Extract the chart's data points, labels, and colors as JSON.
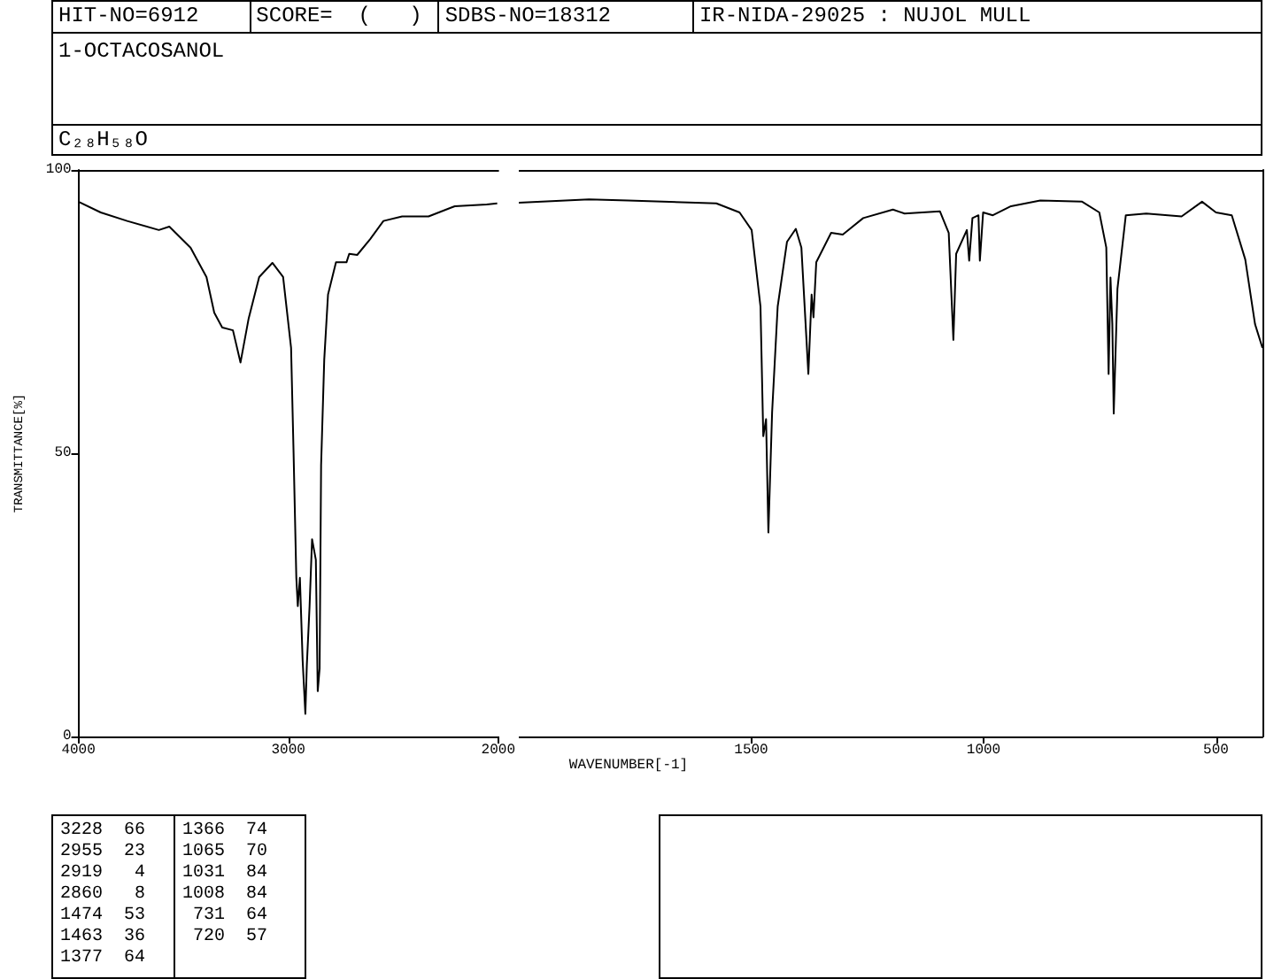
{
  "chart_data": [
    {
      "type": "line",
      "title": "1-OCTACOSANOL",
      "subtitle": "C₂₈H₅₈O",
      "xlabel": "WAVENUMBER[-1]",
      "ylabel": "TRANSMITTANCE[%]",
      "annotations": [
        "HIT-NO=6912",
        "SCORE=  (   )",
        "SDBS-NO=18312",
        "IR-NIDA-29025 : NUJOL MULL"
      ],
      "x": [
        4000,
        3894,
        3768,
        3617,
        3567,
        3466,
        3390,
        3353,
        3315,
        3264,
        3228,
        3189,
        3139,
        3076,
        3025,
        2987,
        2975,
        2962,
        2955,
        2945,
        2932,
        2919,
        2912,
        2899,
        2887,
        2869,
        2860,
        2851,
        2844,
        2829,
        2811,
        2773,
        2723,
        2710,
        2672,
        2610,
        2547,
        2458,
        2332,
        2207,
        2055,
        2005,
        2000
      ],
      "series": [
        {
          "color": "#000000",
          "values": [
            94.4,
            92.5,
            91,
            89.4,
            90,
            86.3,
            81.1,
            74.8,
            72.2,
            71.7,
            66,
            73.8,
            81.1,
            83.6,
            81.1,
            68.6,
            49.9,
            28,
            23,
            28,
            13.5,
            4,
            12.5,
            22.9,
            34.8,
            31.2,
            8,
            12,
            47.8,
            66.5,
            78,
            83.7,
            83.7,
            85.2,
            85,
            87.8,
            91,
            91.8,
            91.8,
            93.6,
            93.9,
            94.1,
            94.2
          ]
        }
      ],
      "xlim": [
        4000,
        2000
      ],
      "xticks": [
        4000,
        3000,
        2000
      ],
      "ylim": [
        0,
        100
      ],
      "yticks": [
        0,
        50,
        100
      ],
      "grid": false,
      "marker": "none",
      "line_style": "solid"
    },
    {
      "type": "line",
      "annotations": [
        "3228  66",
        "2955  23",
        "2919   4",
        "2860   8",
        "1474  53",
        "1463  36",
        "1377  64",
        "1366  74",
        "1065  70",
        "1031  84",
        "1008  84",
        " 731  64",
        " 720  57"
      ],
      "x": [
        2000,
        1849,
        1765,
        1575,
        1525,
        1499,
        1480,
        1474,
        1468,
        1463,
        1455,
        1443,
        1423,
        1404,
        1392,
        1377,
        1370,
        1366,
        1360,
        1328,
        1303,
        1259,
        1195,
        1170,
        1094,
        1075,
        1065,
        1059,
        1036,
        1031,
        1024,
        1011,
        1008,
        1001,
        980,
        941,
        878,
        788,
        751,
        736,
        731,
        727,
        723,
        720,
        712,
        694,
        650,
        574,
        530,
        500,
        466,
        437,
        416,
        400
      ],
      "series": [
        {
          "color": "#000000",
          "values": [
            94.2,
            94.8,
            94.6,
            94.1,
            92.5,
            89.4,
            75.9,
            53,
            56,
            36,
            57.2,
            75.9,
            87.3,
            89.6,
            86.3,
            64,
            78,
            74,
            83.7,
            88.9,
            88.6,
            91.5,
            93,
            92.3,
            92.7,
            88.9,
            70,
            85.2,
            89.4,
            84,
            91.5,
            92,
            84,
            92.5,
            92,
            93.6,
            94.6,
            94.4,
            92.5,
            86.3,
            64,
            81,
            72.8,
            57,
            79,
            92,
            92.3,
            91.8,
            94.4,
            92.5,
            92,
            84.2,
            72.8,
            68.6
          ]
        }
      ],
      "xlim": [
        2000,
        400
      ],
      "xticks": [
        1500,
        1000,
        500
      ],
      "ylim": [
        0,
        100
      ],
      "tick_labels": "x",
      "grid": false,
      "marker": "none",
      "line_style": "solid"
    }
  ]
}
